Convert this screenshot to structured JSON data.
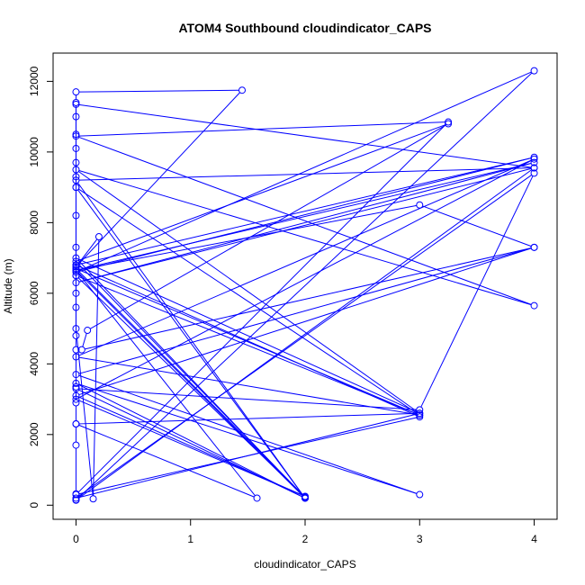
{
  "chart_data": {
    "type": "line",
    "title": "ATOM4 Southbound cloudindicator_CAPS",
    "xlabel": "cloudindicator_CAPS",
    "ylabel": "Altitude (m)",
    "xlim": [
      -0.2,
      4.2
    ],
    "ylim": [
      -400,
      12800
    ],
    "x_ticks": [
      0,
      1,
      2,
      3,
      4
    ],
    "y_ticks": [
      0,
      2000,
      4000,
      6000,
      8000,
      10000,
      12000
    ],
    "grid": false,
    "series": [
      {
        "color": "#0000ff",
        "marker": "open-circle",
        "points": [
          [
            0,
            150
          ],
          [
            0,
            320
          ],
          [
            0,
            1700
          ],
          [
            0,
            2300
          ],
          [
            0,
            2900
          ],
          [
            0,
            3350
          ],
          [
            0,
            4400
          ],
          [
            0,
            4800
          ],
          [
            0,
            5600
          ],
          [
            0,
            6000
          ],
          [
            0,
            6500
          ],
          [
            0,
            6800
          ],
          [
            0,
            7300
          ],
          [
            0,
            8200
          ],
          [
            0,
            9000
          ],
          [
            0,
            9300
          ],
          [
            0,
            9700
          ],
          [
            0,
            10100
          ],
          [
            0,
            10500
          ],
          [
            0,
            11000
          ],
          [
            0,
            11400
          ],
          [
            0,
            11700
          ],
          [
            1.45,
            11750
          ],
          [
            0,
            6750
          ],
          [
            0.2,
            7600
          ],
          [
            0.15,
            180
          ],
          [
            0,
            5000
          ],
          [
            0,
            11350
          ],
          [
            4,
            9550
          ],
          [
            0,
            9200
          ],
          [
            2,
            200
          ],
          [
            0,
            7000
          ],
          [
            3,
            2600
          ],
          [
            0,
            9500
          ],
          [
            4,
            5650
          ],
          [
            0,
            10450
          ],
          [
            3.25,
            10850
          ],
          [
            0,
            300
          ],
          [
            3,
            2500
          ],
          [
            0,
            6800
          ],
          [
            4,
            9850
          ],
          [
            0,
            6600
          ],
          [
            4,
            12300
          ],
          [
            0,
            140
          ],
          [
            4,
            9550
          ],
          [
            0,
            6300
          ],
          [
            4,
            9700
          ],
          [
            0,
            6650
          ],
          [
            3,
            8500
          ],
          [
            4,
            7300
          ],
          [
            0,
            3700
          ],
          [
            3,
            300
          ],
          [
            0,
            3450
          ],
          [
            2,
            200
          ],
          [
            0,
            6650
          ],
          [
            1.58,
            200
          ],
          [
            0,
            2300
          ],
          [
            3,
            2600
          ],
          [
            0,
            200
          ],
          [
            4,
            9400
          ],
          [
            3,
            2700
          ],
          [
            0,
            3300
          ],
          [
            2,
            200
          ],
          [
            0,
            9000
          ],
          [
            3,
            2550
          ],
          [
            0,
            6500
          ],
          [
            2,
            220
          ],
          [
            0,
            6900
          ],
          [
            3.25,
            10800
          ],
          [
            0.1,
            4950
          ],
          [
            0.05,
            4400
          ],
          [
            4,
            7300
          ],
          [
            0,
            3100
          ],
          [
            2,
            250
          ],
          [
            0,
            3000
          ],
          [
            4,
            9800
          ],
          [
            0,
            4200
          ],
          [
            3,
            2550
          ],
          [
            0,
            6700
          ],
          [
            2,
            230
          ]
        ]
      }
    ]
  }
}
